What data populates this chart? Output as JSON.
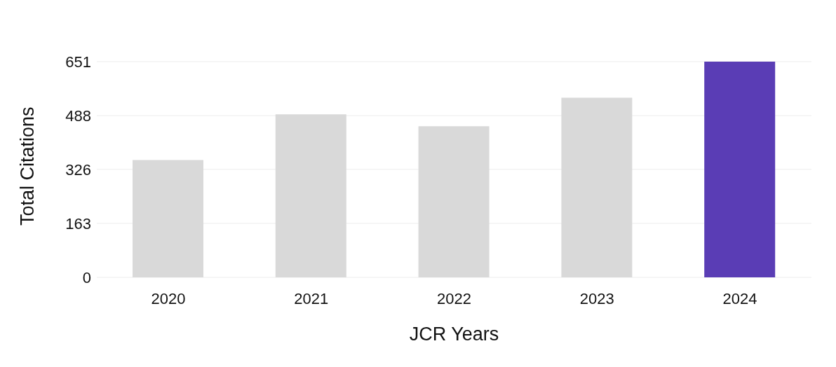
{
  "chart_data": {
    "type": "bar",
    "xlabel": "JCR Years",
    "ylabel": "Total Citations",
    "categories": [
      "2020",
      "2021",
      "2022",
      "2023",
      "2024"
    ],
    "values": [
      354,
      492,
      456,
      542,
      651
    ],
    "colors": [
      "#d9d9d9",
      "#d9d9d9",
      "#d9d9d9",
      "#d9d9d9",
      "#5a3db5"
    ],
    "ylim": [
      0,
      651
    ],
    "yticks": [
      0,
      163,
      326,
      488,
      651
    ],
    "grid": "y"
  }
}
